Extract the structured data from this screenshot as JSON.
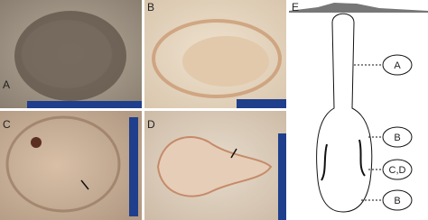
{
  "panels": [
    {
      "label": "A"
    },
    {
      "label": "B"
    },
    {
      "label": "C"
    },
    {
      "label": "D"
    },
    {
      "label": "E"
    }
  ],
  "diagram": {
    "callouts": [
      {
        "label": "A"
      },
      {
        "label": "B"
      },
      {
        "label": "C,D"
      },
      {
        "label": "B"
      }
    ]
  }
}
